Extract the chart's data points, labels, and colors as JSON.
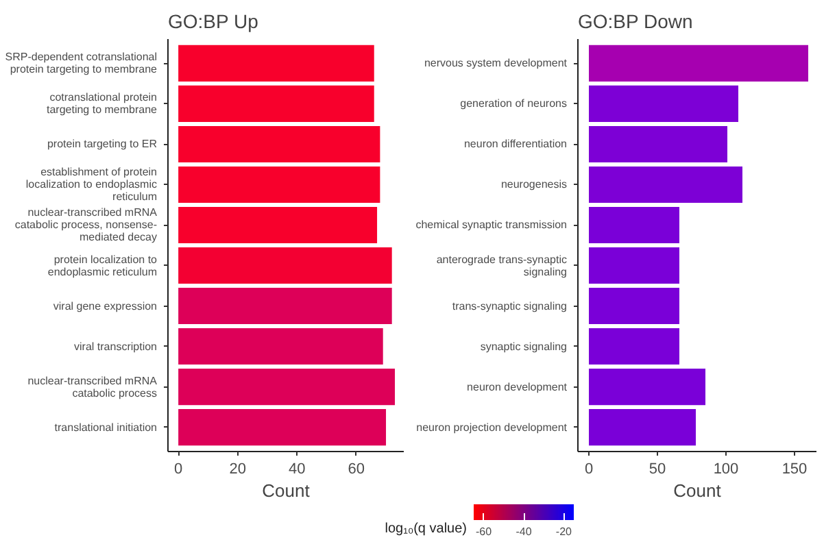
{
  "chart_data": [
    {
      "type": "bar",
      "orientation": "horizontal",
      "title": "GO:BP Up",
      "xlabel": "Count",
      "categories": [
        "SRP-dependent cotranslational protein targeting to membrane",
        "cotranslational protein targeting to membrane",
        "protein targeting to ER",
        "establishment of protein localization to endoplasmic reticulum",
        "nuclear-transcribed mRNA catabolic process, nonsense-mediated decay",
        "protein localization to endoplasmic reticulum",
        "viral gene expression",
        "viral transcription",
        "nuclear-transcribed mRNA catabolic process",
        "translational initiation"
      ],
      "values": [
        66,
        66,
        68,
        68,
        67,
        72,
        72,
        69,
        73,
        70
      ],
      "colors": [
        "#f8002c",
        "#f8002c",
        "#f8002c",
        "#f8002c",
        "#f8002c",
        "#f30032",
        "#dd0058",
        "#dd0058",
        "#dd0058",
        "#dd0058"
      ],
      "xlim": [
        -3.5,
        76
      ],
      "xticks": [
        0,
        20,
        40,
        60
      ],
      "grid": false,
      "clabel": "log₁₀(q value)",
      "clim": [
        -65,
        -15
      ],
      "cticks": [
        -60,
        -40,
        -20
      ]
    },
    {
      "type": "bar",
      "orientation": "horizontal",
      "title": "GO:BP Down",
      "xlabel": "Count",
      "categories": [
        "nervous system development",
        "generation of neurons",
        "neuron differentiation",
        "neurogenesis",
        "chemical synaptic transmission",
        "anterograde trans-synaptic signaling",
        "trans-synaptic signaling",
        "synaptic signaling",
        "neuron development",
        "neuron projection development"
      ],
      "values": [
        160,
        109,
        101,
        112,
        66,
        66,
        66,
        66,
        85,
        78
      ],
      "colors": [
        "#a600b0",
        "#7d00d6",
        "#7d00d6",
        "#7d00d6",
        "#7a00d8",
        "#7a00d8",
        "#7a00d8",
        "#7a00d8",
        "#7a00d8",
        "#7a00d8"
      ],
      "xlim": [
        -8,
        166
      ],
      "xticks": [
        0,
        50,
        100,
        150
      ],
      "grid": false
    }
  ]
}
